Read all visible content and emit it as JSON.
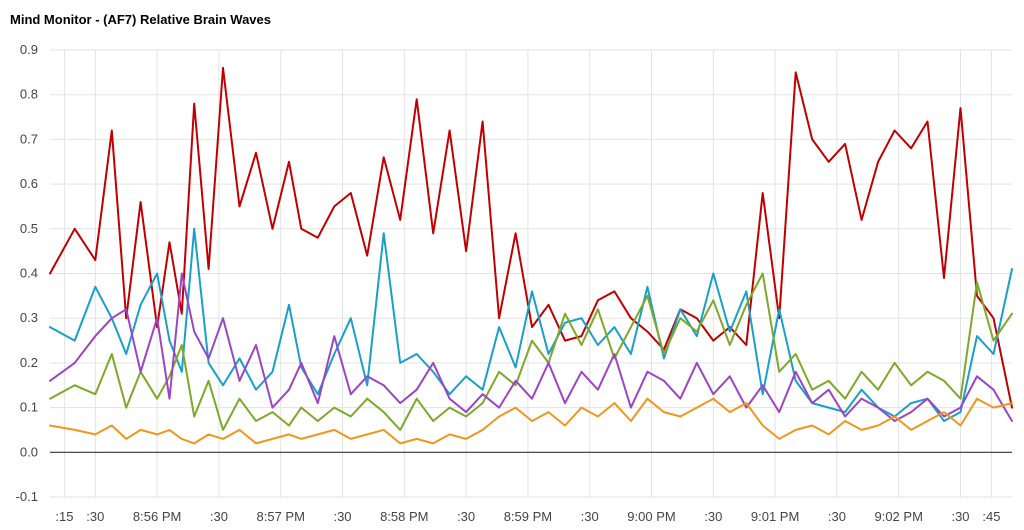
{
  "chart_data": {
    "type": "line",
    "title": "Mind Monitor - (AF7) Relative Brain Waves",
    "xlabel": "",
    "ylabel": "",
    "ylim": [
      -0.1,
      0.9
    ],
    "y_ticks": [
      "-0.1",
      "0.0",
      "0.1",
      "0.2",
      "0.3",
      "0.4",
      "0.5",
      "0.6",
      "0.7",
      "0.8",
      "0.9"
    ],
    "x_ticks": [
      ":15",
      ":30",
      "8:56 PM",
      ":30",
      "8:57 PM",
      ":30",
      "8:58 PM",
      ":30",
      "8:59 PM",
      ":30",
      "9:00 PM",
      ":30",
      "9:01 PM",
      ":30",
      "9:02 PM",
      ":30",
      ":45"
    ],
    "x_tick_seconds": [
      15,
      30,
      60,
      90,
      120,
      150,
      180,
      210,
      240,
      270,
      300,
      330,
      360,
      390,
      420,
      450,
      465
    ],
    "x_range_seconds": [
      8,
      475
    ],
    "grid": true,
    "legend": "none",
    "series": [
      {
        "color": "#c00000",
        "x": [
          8,
          20,
          30,
          38,
          45,
          52,
          60,
          66,
          72,
          78,
          85,
          92,
          100,
          108,
          116,
          124,
          130,
          138,
          146,
          154,
          162,
          170,
          178,
          186,
          194,
          202,
          210,
          218,
          226,
          234,
          242,
          250,
          258,
          266,
          274,
          282,
          290,
          298,
          306,
          314,
          322,
          330,
          338,
          346,
          354,
          362,
          370,
          378,
          386,
          394,
          402,
          410,
          418,
          426,
          434,
          442,
          450,
          458,
          466,
          475
        ],
        "values": [
          0.4,
          0.5,
          0.43,
          0.72,
          0.3,
          0.56,
          0.28,
          0.47,
          0.31,
          0.78,
          0.41,
          0.86,
          0.55,
          0.67,
          0.5,
          0.65,
          0.5,
          0.48,
          0.55,
          0.58,
          0.44,
          0.66,
          0.52,
          0.79,
          0.49,
          0.72,
          0.45,
          0.74,
          0.3,
          0.49,
          0.28,
          0.33,
          0.25,
          0.26,
          0.34,
          0.36,
          0.3,
          0.27,
          0.23,
          0.32,
          0.3,
          0.25,
          0.28,
          0.24,
          0.58,
          0.3,
          0.85,
          0.7,
          0.65,
          0.69,
          0.52,
          0.65,
          0.72,
          0.68,
          0.74,
          0.39,
          0.77,
          0.35,
          0.3,
          0.1
        ]
      },
      {
        "color": "#1a9fc9",
        "x": [
          8,
          20,
          30,
          38,
          45,
          52,
          60,
          66,
          72,
          78,
          85,
          92,
          100,
          108,
          116,
          124,
          130,
          138,
          146,
          154,
          162,
          170,
          178,
          186,
          194,
          202,
          210,
          218,
          226,
          234,
          242,
          250,
          258,
          266,
          274,
          282,
          290,
          298,
          306,
          314,
          322,
          330,
          338,
          346,
          354,
          362,
          370,
          378,
          386,
          394,
          402,
          410,
          418,
          426,
          434,
          442,
          450,
          458,
          466,
          475
        ],
        "values": [
          0.28,
          0.25,
          0.37,
          0.3,
          0.22,
          0.33,
          0.4,
          0.25,
          0.18,
          0.5,
          0.2,
          0.15,
          0.21,
          0.14,
          0.18,
          0.33,
          0.19,
          0.13,
          0.22,
          0.3,
          0.15,
          0.49,
          0.2,
          0.22,
          0.18,
          0.13,
          0.17,
          0.14,
          0.28,
          0.19,
          0.36,
          0.22,
          0.29,
          0.3,
          0.24,
          0.28,
          0.22,
          0.37,
          0.21,
          0.32,
          0.26,
          0.4,
          0.27,
          0.36,
          0.13,
          0.32,
          0.16,
          0.11,
          0.1,
          0.09,
          0.14,
          0.1,
          0.08,
          0.11,
          0.12,
          0.07,
          0.09,
          0.26,
          0.22,
          0.41
        ]
      },
      {
        "color": "#7ea82a",
        "x": [
          8,
          20,
          30,
          38,
          45,
          52,
          60,
          66,
          72,
          78,
          85,
          92,
          100,
          108,
          116,
          124,
          130,
          138,
          146,
          154,
          162,
          170,
          178,
          186,
          194,
          202,
          210,
          218,
          226,
          234,
          242,
          250,
          258,
          266,
          274,
          282,
          290,
          298,
          306,
          314,
          322,
          330,
          338,
          346,
          354,
          362,
          370,
          378,
          386,
          394,
          402,
          410,
          418,
          426,
          434,
          442,
          450,
          458,
          466,
          475
        ],
        "values": [
          0.12,
          0.15,
          0.13,
          0.22,
          0.1,
          0.18,
          0.12,
          0.17,
          0.24,
          0.08,
          0.16,
          0.05,
          0.12,
          0.07,
          0.09,
          0.06,
          0.1,
          0.07,
          0.1,
          0.08,
          0.12,
          0.09,
          0.05,
          0.12,
          0.07,
          0.1,
          0.08,
          0.11,
          0.18,
          0.15,
          0.25,
          0.2,
          0.31,
          0.24,
          0.32,
          0.21,
          0.28,
          0.35,
          0.22,
          0.3,
          0.27,
          0.34,
          0.24,
          0.33,
          0.4,
          0.18,
          0.22,
          0.14,
          0.16,
          0.12,
          0.18,
          0.14,
          0.2,
          0.15,
          0.18,
          0.16,
          0.12,
          0.38,
          0.25,
          0.31
        ]
      },
      {
        "color": "#9b45c4",
        "x": [
          8,
          20,
          30,
          38,
          45,
          52,
          60,
          66,
          72,
          78,
          85,
          92,
          100,
          108,
          116,
          124,
          130,
          138,
          146,
          154,
          162,
          170,
          178,
          186,
          194,
          202,
          210,
          218,
          226,
          234,
          242,
          250,
          258,
          266,
          274,
          282,
          290,
          298,
          306,
          314,
          322,
          330,
          338,
          346,
          354,
          362,
          370,
          378,
          386,
          394,
          402,
          410,
          418,
          426,
          434,
          442,
          450,
          458,
          466,
          475
        ],
        "values": [
          0.16,
          0.2,
          0.26,
          0.3,
          0.32,
          0.18,
          0.3,
          0.12,
          0.4,
          0.27,
          0.21,
          0.3,
          0.16,
          0.24,
          0.1,
          0.14,
          0.2,
          0.11,
          0.26,
          0.13,
          0.17,
          0.15,
          0.11,
          0.14,
          0.2,
          0.12,
          0.09,
          0.13,
          0.1,
          0.16,
          0.12,
          0.2,
          0.11,
          0.18,
          0.14,
          0.22,
          0.1,
          0.18,
          0.16,
          0.12,
          0.2,
          0.13,
          0.17,
          0.1,
          0.15,
          0.09,
          0.18,
          0.11,
          0.14,
          0.08,
          0.12,
          0.1,
          0.07,
          0.09,
          0.12,
          0.08,
          0.1,
          0.17,
          0.14,
          0.07
        ]
      },
      {
        "color": "#f0961e",
        "x": [
          8,
          20,
          30,
          38,
          45,
          52,
          60,
          66,
          72,
          78,
          85,
          92,
          100,
          108,
          116,
          124,
          130,
          138,
          146,
          154,
          162,
          170,
          178,
          186,
          194,
          202,
          210,
          218,
          226,
          234,
          242,
          250,
          258,
          266,
          274,
          282,
          290,
          298,
          306,
          314,
          322,
          330,
          338,
          346,
          354,
          362,
          370,
          378,
          386,
          394,
          402,
          410,
          418,
          426,
          434,
          442,
          450,
          458,
          466,
          475
        ],
        "values": [
          0.06,
          0.05,
          0.04,
          0.06,
          0.03,
          0.05,
          0.04,
          0.05,
          0.03,
          0.02,
          0.04,
          0.03,
          0.05,
          0.02,
          0.03,
          0.04,
          0.03,
          0.04,
          0.05,
          0.03,
          0.04,
          0.05,
          0.02,
          0.03,
          0.02,
          0.04,
          0.03,
          0.05,
          0.08,
          0.1,
          0.07,
          0.09,
          0.06,
          0.1,
          0.08,
          0.11,
          0.07,
          0.12,
          0.09,
          0.08,
          0.1,
          0.12,
          0.09,
          0.11,
          0.06,
          0.03,
          0.05,
          0.06,
          0.04,
          0.07,
          0.05,
          0.06,
          0.08,
          0.05,
          0.07,
          0.09,
          0.06,
          0.12,
          0.1,
          0.11
        ]
      }
    ]
  }
}
